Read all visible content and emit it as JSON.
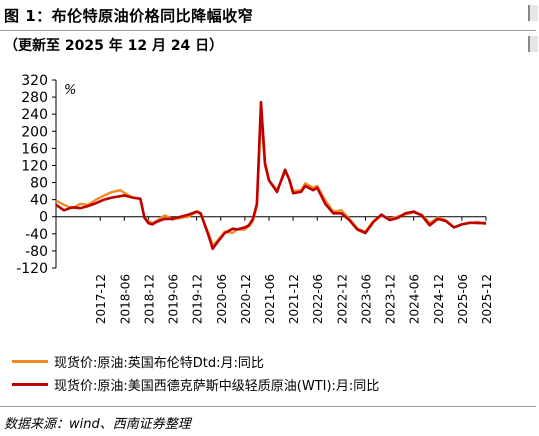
{
  "header": {
    "title": "图 1：布伦特原油价格同比降幅收窄",
    "subtitle": "（更新至 2025 年 12 月 24 日）"
  },
  "source": "数据来源：wind、西南证券整理",
  "colors": {
    "brent": "#F08A24",
    "wti": "#C00000",
    "axis": "#000000"
  },
  "chart_data": {
    "type": "line",
    "unit_label": "%",
    "ylim": [
      -120,
      320
    ],
    "yticks": [
      320,
      280,
      240,
      200,
      160,
      120,
      80,
      40,
      0,
      -40,
      -80,
      -120
    ],
    "xlim": [
      "2017-01",
      "2025-12"
    ],
    "xticks": [
      "2017-12",
      "2018-06",
      "2018-12",
      "2019-06",
      "2019-12",
      "2020-06",
      "2020-12",
      "2021-06",
      "2021-12",
      "2022-06",
      "2022-12",
      "2023-06",
      "2023-12",
      "2024-06",
      "2024-12",
      "2025-06",
      "2025-12"
    ],
    "grid": false,
    "legend_position": "bottom",
    "series": [
      {
        "name": "现货价:原油:英国布伦特Dtd:月:同比",
        "color": "#F08A24",
        "points": [
          [
            "2017-01",
            38
          ],
          [
            "2017-03",
            28
          ],
          [
            "2017-05",
            20
          ],
          [
            "2017-07",
            30
          ],
          [
            "2017-09",
            28
          ],
          [
            "2017-11",
            40
          ],
          [
            "2018-01",
            50
          ],
          [
            "2018-03",
            58
          ],
          [
            "2018-05",
            62
          ],
          [
            "2018-06",
            56
          ],
          [
            "2018-08",
            45
          ],
          [
            "2018-10",
            42
          ],
          [
            "2018-11",
            -2
          ],
          [
            "2018-12",
            -10
          ],
          [
            "2019-01",
            -15
          ],
          [
            "2019-02",
            -10
          ],
          [
            "2019-04",
            3
          ],
          [
            "2019-06",
            -5
          ],
          [
            "2019-08",
            -3
          ],
          [
            "2019-10",
            0
          ],
          [
            "2019-12",
            12
          ],
          [
            "2020-01",
            5
          ],
          [
            "2020-03",
            -40
          ],
          [
            "2020-04",
            -68
          ],
          [
            "2020-05",
            -58
          ],
          [
            "2020-07",
            -35
          ],
          [
            "2020-09",
            -38
          ],
          [
            "2020-10",
            -30
          ],
          [
            "2020-12",
            -30
          ],
          [
            "2021-01",
            -22
          ],
          [
            "2021-02",
            -10
          ],
          [
            "2021-03",
            25
          ],
          [
            "2021-04",
            240
          ],
          [
            "2021-05",
            120
          ],
          [
            "2021-06",
            85
          ],
          [
            "2021-08",
            62
          ],
          [
            "2021-10",
            105
          ],
          [
            "2021-11",
            90
          ],
          [
            "2021-12",
            60
          ],
          [
            "2022-02",
            62
          ],
          [
            "2022-03",
            78
          ],
          [
            "2022-05",
            68
          ],
          [
            "2022-06",
            72
          ],
          [
            "2022-08",
            38
          ],
          [
            "2022-10",
            12
          ],
          [
            "2022-12",
            15
          ],
          [
            "2023-02",
            -5
          ],
          [
            "2023-04",
            -28
          ],
          [
            "2023-06",
            -35
          ],
          [
            "2023-08",
            -10
          ],
          [
            "2023-10",
            3
          ],
          [
            "2023-12",
            -5
          ],
          [
            "2024-02",
            0
          ],
          [
            "2024-04",
            6
          ],
          [
            "2024-06",
            10
          ],
          [
            "2024-08",
            5
          ],
          [
            "2024-10",
            -15
          ],
          [
            "2024-12",
            -2
          ],
          [
            "2025-02",
            -8
          ],
          [
            "2025-04",
            -25
          ],
          [
            "2025-06",
            -18
          ],
          [
            "2025-08",
            -15
          ],
          [
            "2025-10",
            -12
          ],
          [
            "2025-12",
            -18
          ]
        ]
      },
      {
        "name": "现货价:原油:美国西德克萨斯中级轻质原油(WTI):月:同比",
        "color": "#C00000",
        "points": [
          [
            "2017-01",
            28
          ],
          [
            "2017-03",
            15
          ],
          [
            "2017-05",
            22
          ],
          [
            "2017-07",
            20
          ],
          [
            "2017-09",
            25
          ],
          [
            "2017-11",
            32
          ],
          [
            "2018-01",
            40
          ],
          [
            "2018-03",
            45
          ],
          [
            "2018-05",
            48
          ],
          [
            "2018-06",
            50
          ],
          [
            "2018-08",
            45
          ],
          [
            "2018-10",
            42
          ],
          [
            "2018-11",
            -2
          ],
          [
            "2018-12",
            -15
          ],
          [
            "2019-01",
            -18
          ],
          [
            "2019-02",
            -12
          ],
          [
            "2019-04",
            -5
          ],
          [
            "2019-06",
            -5
          ],
          [
            "2019-08",
            0
          ],
          [
            "2019-10",
            5
          ],
          [
            "2019-12",
            12
          ],
          [
            "2020-01",
            8
          ],
          [
            "2020-03",
            -45
          ],
          [
            "2020-04",
            -75
          ],
          [
            "2020-05",
            -62
          ],
          [
            "2020-07",
            -38
          ],
          [
            "2020-09",
            -28
          ],
          [
            "2020-10",
            -30
          ],
          [
            "2020-12",
            -25
          ],
          [
            "2021-01",
            -20
          ],
          [
            "2021-02",
            -5
          ],
          [
            "2021-03",
            30
          ],
          [
            "2021-04",
            268
          ],
          [
            "2021-05",
            125
          ],
          [
            "2021-06",
            85
          ],
          [
            "2021-08",
            58
          ],
          [
            "2021-10",
            110
          ],
          [
            "2021-11",
            88
          ],
          [
            "2021-12",
            55
          ],
          [
            "2022-02",
            58
          ],
          [
            "2022-03",
            72
          ],
          [
            "2022-05",
            62
          ],
          [
            "2022-06",
            68
          ],
          [
            "2022-08",
            30
          ],
          [
            "2022-10",
            8
          ],
          [
            "2022-12",
            8
          ],
          [
            "2023-02",
            -8
          ],
          [
            "2023-04",
            -30
          ],
          [
            "2023-06",
            -38
          ],
          [
            "2023-08",
            -12
          ],
          [
            "2023-10",
            5
          ],
          [
            "2023-12",
            -8
          ],
          [
            "2024-02",
            -3
          ],
          [
            "2024-04",
            8
          ],
          [
            "2024-06",
            12
          ],
          [
            "2024-08",
            3
          ],
          [
            "2024-10",
            -20
          ],
          [
            "2024-12",
            -5
          ],
          [
            "2025-02",
            -10
          ],
          [
            "2025-04",
            -25
          ],
          [
            "2025-06",
            -18
          ],
          [
            "2025-08",
            -14
          ],
          [
            "2025-10",
            -15
          ],
          [
            "2025-12",
            -15
          ]
        ]
      }
    ]
  }
}
